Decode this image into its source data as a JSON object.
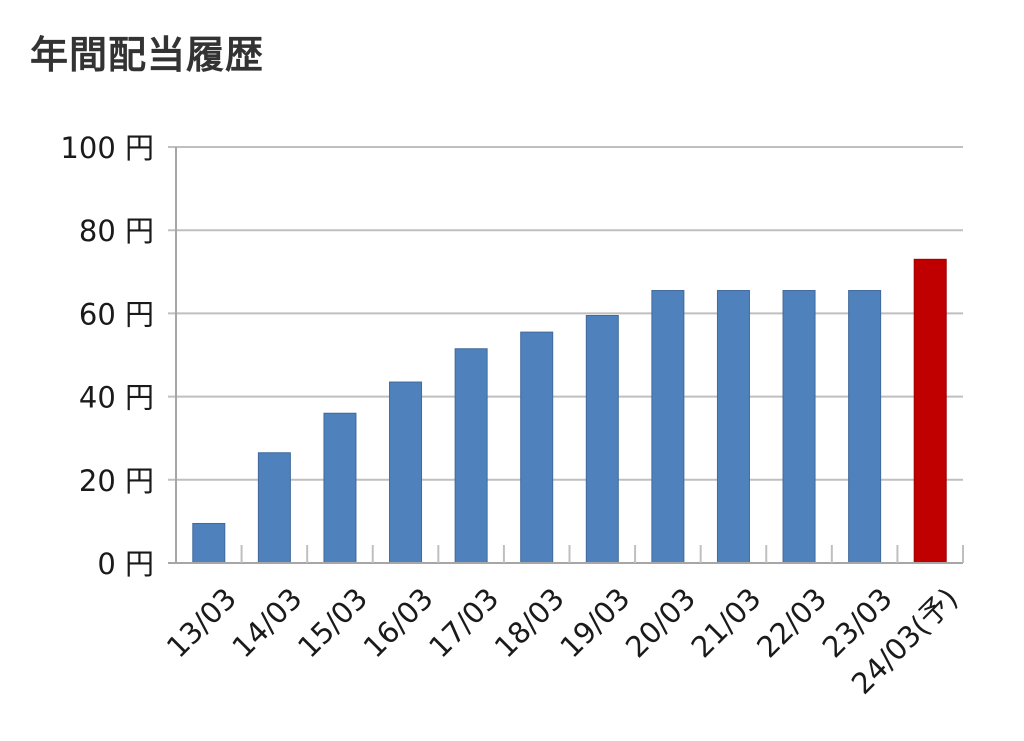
{
  "chart_data": {
    "type": "bar",
    "title": "年間配当履歴",
    "xlabel": "",
    "ylabel": "",
    "categories": [
      "13/03",
      "14/03",
      "15/03",
      "16/03",
      "17/03",
      "18/03",
      "19/03",
      "20/03",
      "21/03",
      "22/03",
      "23/03",
      "24/03(予)"
    ],
    "values": [
      9.5,
      26.5,
      36,
      43.5,
      51.5,
      55.5,
      59.5,
      65.5,
      65.5,
      65.5,
      65.5,
      73
    ],
    "ylim": [
      0,
      100
    ],
    "yticks": [
      0,
      20,
      40,
      60,
      80,
      100
    ],
    "ytick_labels": [
      "0 円",
      "20 円",
      "40 円",
      "60 円",
      "80 円",
      "100 円"
    ],
    "grid": true,
    "legend": "none",
    "colors": {
      "actual": "#4f81bd",
      "forecast": "#c00000",
      "grid": "#bfbfbf",
      "axis": "#a6a6a6"
    },
    "forecast_index": 11
  }
}
